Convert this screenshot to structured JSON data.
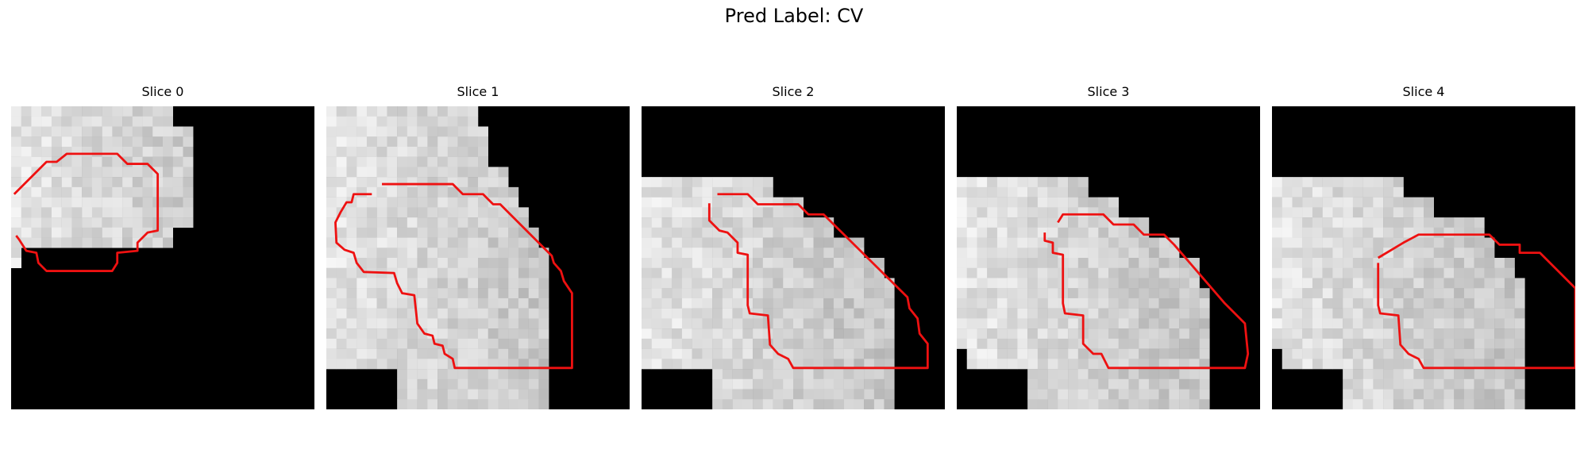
{
  "title": "Pred Label: CV",
  "slices": [
    {
      "label": "Slice 0",
      "mask_rows": [
        "111111111111111100000000000000",
        "111111111111111100000000000000",
        "111111111111111111000000000000",
        "111111111111111111000000000000",
        "111111111111111111000000000000",
        "111111111111111111000000000000",
        "111111111111111111000000000000",
        "111111111111111111000000000000",
        "111111111111111111000000000000",
        "111111111111111111000000000000",
        "111111111111111111000000000000",
        "111111111111111111000000000000",
        "111111111111111100000000000000",
        "111111111111111100000000000000",
        "100000000000000000000000000000",
        "100000000000000000000000000000",
        "000000000000000000000000000000",
        "000000000000000000000000000000",
        "000000000000000000000000000000",
        "000000000000000000000000000000",
        "000000000000000000000000000000",
        "000000000000000000000000000000",
        "000000000000000000000000000000",
        "000000000000000000000000000000",
        "000000000000000000000000000000",
        "000000000000000000000000000000",
        "000000000000000000000000000000",
        "000000000000000000000000000000",
        "000000000000000000000000000000",
        "000000000000000000000000000000"
      ],
      "contour": [
        [
          0.3,
          8.7
        ],
        [
          3.5,
          5.5
        ],
        [
          4.5,
          5.5
        ],
        [
          5.5,
          4.7
        ],
        [
          10.5,
          4.7
        ],
        [
          11.5,
          5.7
        ],
        [
          13.5,
          5.7
        ],
        [
          14.5,
          6.7
        ],
        [
          14.5,
          12.3
        ],
        [
          13.5,
          12.5
        ],
        [
          12.5,
          13.5
        ],
        [
          12.5,
          14.3
        ],
        [
          10.5,
          14.5
        ],
        [
          10.5,
          15.5
        ],
        [
          10.0,
          16.3
        ],
        [
          3.5,
          16.3
        ],
        [
          2.7,
          15.5
        ],
        [
          2.5,
          14.5
        ],
        [
          1.5,
          14.3
        ],
        [
          0.8,
          13.2
        ],
        [
          0.5,
          12.8
        ]
      ]
    },
    {
      "label": "Slice 1",
      "mask_rows": [
        "111111111111111000000000000000",
        "111111111111111000000000000000",
        "111111111111111100000000000000",
        "111111111111111100000000000000",
        "111111111111111100000000000000",
        "111111111111111100000000000000",
        "111111111111111111000000000000",
        "111111111111111111000000000000",
        "111111111111111111100000000000",
        "111111111111111111100000000000",
        "111111111111111111110000000000",
        "111111111111111111110000000000",
        "111111111111111111111000000000",
        "111111111111111111111000000000",
        "111111111111111111111100000000",
        "111111111111111111111100000000",
        "111111111111111111111100000000",
        "111111111111111111111100000000",
        "111111111111111111111100000000",
        "111111111111111111111100000000",
        "111111111111111111111100000000",
        "111111111111111111111100000000",
        "111111111111111111111100000000",
        "111111111111111111111100000000",
        "111111111111111111111100000000",
        "111111111111111111111100000000",
        "000000011111111111111100000000",
        "000000011111111111111100000000",
        "000000011111111111111100000000",
        "000000011111111111111100000000"
      ],
      "contour": [
        [
          5.5,
          7.7
        ],
        [
          12.5,
          7.7
        ],
        [
          13.5,
          8.7
        ],
        [
          15.5,
          8.7
        ],
        [
          16.5,
          9.7
        ],
        [
          17.2,
          9.7
        ],
        [
          22.3,
          14.8
        ],
        [
          22.5,
          15.5
        ],
        [
          23.2,
          16.3
        ],
        [
          23.5,
          17.3
        ],
        [
          24.3,
          18.5
        ],
        [
          24.3,
          25.9
        ],
        [
          12.7,
          25.9
        ],
        [
          12.5,
          25.0
        ],
        [
          11.7,
          24.5
        ],
        [
          11.5,
          23.7
        ],
        [
          10.7,
          23.5
        ],
        [
          10.5,
          22.7
        ],
        [
          9.7,
          22.5
        ],
        [
          9.0,
          21.5
        ],
        [
          8.7,
          18.7
        ],
        [
          7.5,
          18.5
        ],
        [
          7.0,
          17.5
        ],
        [
          6.7,
          16.5
        ],
        [
          3.7,
          16.4
        ],
        [
          3.0,
          15.5
        ],
        [
          2.7,
          14.5
        ],
        [
          1.8,
          14.2
        ],
        [
          1.0,
          13.5
        ],
        [
          0.9,
          11.5
        ],
        [
          1.4,
          10.5
        ],
        [
          2.0,
          9.5
        ],
        [
          2.5,
          9.5
        ],
        [
          2.7,
          8.7
        ],
        [
          4.5,
          8.7
        ]
      ]
    },
    {
      "label": "Slice 2",
      "mask_rows": [
        "000000000000000000000000000000",
        "000000000000000000000000000000",
        "000000000000000000000000000000",
        "000000000000000000000000000000",
        "000000000000000000000000000000",
        "000000000000000000000000000000",
        "000000000000000000000000000000",
        "111111111111100000000000000000",
        "111111111111100000000000000000",
        "111111111111111100000000000000",
        "111111111111111100000000000000",
        "111111111111111111100000000000",
        "111111111111111111100000000000",
        "111111111111111111111100000000",
        "111111111111111111111100000000",
        "111111111111111111111111000000",
        "111111111111111111111111000000",
        "111111111111111111111111100000",
        "111111111111111111111111100000",
        "111111111111111111111111100000",
        "111111111111111111111111100000",
        "111111111111111111111111100000",
        "111111111111111111111111100000",
        "111111111111111111111111100000",
        "111111111111111111111111100000",
        "111111111111111111111111100000",
        "000000011111111111111111100000",
        "000000011111111111111111100000",
        "000000011111111111111111100000",
        "000000011111111111111111100000"
      ],
      "contour": [
        [
          7.5,
          8.7
        ],
        [
          10.5,
          8.7
        ],
        [
          11.5,
          9.7
        ],
        [
          15.5,
          9.7
        ],
        [
          16.5,
          10.7
        ],
        [
          18.0,
          10.7
        ],
        [
          26.3,
          18.9
        ],
        [
          26.5,
          20.0
        ],
        [
          27.3,
          21.0
        ],
        [
          27.5,
          22.5
        ],
        [
          28.3,
          23.5
        ],
        [
          28.3,
          25.9
        ],
        [
          15.0,
          25.9
        ],
        [
          14.5,
          25.0
        ],
        [
          13.5,
          24.5
        ],
        [
          12.7,
          23.6
        ],
        [
          12.5,
          20.7
        ],
        [
          10.7,
          20.5
        ],
        [
          10.5,
          19.7
        ],
        [
          10.5,
          14.7
        ],
        [
          9.5,
          14.5
        ],
        [
          9.5,
          13.5
        ],
        [
          8.5,
          12.5
        ],
        [
          7.7,
          12.3
        ],
        [
          6.7,
          11.3
        ],
        [
          6.7,
          9.6
        ]
      ]
    },
    {
      "label": "Slice 3",
      "mask_rows": [
        "000000000000000000000000000000",
        "000000000000000000000000000000",
        "000000000000000000000000000000",
        "000000000000000000000000000000",
        "000000000000000000000000000000",
        "000000000000000000000000000000",
        "000000000000000000000000000000",
        "111111111111100000000000000000",
        "111111111111100000000000000000",
        "111111111111111100000000000000",
        "111111111111111100000000000000",
        "111111111111111111100000000000",
        "111111111111111111100000000000",
        "111111111111111111111100000000",
        "111111111111111111111100000000",
        "111111111111111111111111000000",
        "111111111111111111111111000000",
        "111111111111111111111111000000",
        "111111111111111111111111100000",
        "111111111111111111111111100000",
        "111111111111111111111111100000",
        "111111111111111111111111100000",
        "111111111111111111111111100000",
        "111111111111111111111111100000",
        "011111111111111111111111100000",
        "011111111111111111111111100000",
        "000000011111111111111111100000",
        "000000011111111111111111100000",
        "000000011111111111111111100000",
        "000000011111111111111111100000"
      ],
      "contour": [
        [
          10.0,
          11.5
        ],
        [
          10.5,
          10.7
        ],
        [
          14.5,
          10.7
        ],
        [
          15.5,
          11.7
        ],
        [
          17.5,
          11.7
        ],
        [
          18.5,
          12.7
        ],
        [
          20.5,
          12.7
        ],
        [
          21.5,
          13.7
        ],
        [
          26.5,
          19.5
        ],
        [
          27.5,
          20.5
        ],
        [
          28.5,
          21.5
        ],
        [
          28.8,
          24.5
        ],
        [
          28.5,
          25.9
        ],
        [
          15.0,
          25.9
        ],
        [
          14.3,
          24.5
        ],
        [
          13.5,
          24.5
        ],
        [
          12.5,
          23.5
        ],
        [
          12.5,
          20.7
        ],
        [
          10.7,
          20.5
        ],
        [
          10.5,
          19.5
        ],
        [
          10.5,
          14.7
        ],
        [
          9.5,
          14.5
        ],
        [
          9.5,
          13.5
        ],
        [
          8.7,
          13.3
        ],
        [
          8.7,
          12.5
        ]
      ]
    },
    {
      "label": "Slice 4",
      "mask_rows": [
        "000000000000000000000000000000",
        "000000000000000000000000000000",
        "000000000000000000000000000000",
        "000000000000000000000000000000",
        "000000000000000000000000000000",
        "000000000000000000000000000000",
        "000000000000000000000000000000",
        "111111111111100000000000000000",
        "111111111111100000000000000000",
        "111111111111111100000000000000",
        "111111111111111100000000000000",
        "111111111111111111111000000000",
        "111111111111111111111000000000",
        "111111111111111111111100000000",
        "111111111111111111111100000000",
        "111111111111111111111111000000",
        "111111111111111111111111000000",
        "111111111111111111111111100000",
        "111111111111111111111111100000",
        "111111111111111111111111100000",
        "111111111111111111111111100000",
        "111111111111111111111111100000",
        "111111111111111111111111100000",
        "111111111111111111111111100000",
        "011111111111111111111111100000",
        "011111111111111111111111100000",
        "000000011111111111111111100000",
        "000000011111111111111111100000",
        "000000011111111111111111100000",
        "000000011111111111111111100000"
      ],
      "contour": [
        [
          10.5,
          15.0
        ],
        [
          13.0,
          13.5
        ],
        [
          14.5,
          12.7
        ],
        [
          21.5,
          12.7
        ],
        [
          22.5,
          13.7
        ],
        [
          24.5,
          13.7
        ],
        [
          24.5,
          14.5
        ],
        [
          26.5,
          14.5
        ],
        [
          30.0,
          18.0
        ],
        [
          30.0,
          25.9
        ],
        [
          15.0,
          25.9
        ],
        [
          14.5,
          25.0
        ],
        [
          13.5,
          24.5
        ],
        [
          12.7,
          23.6
        ],
        [
          12.5,
          20.7
        ],
        [
          10.7,
          20.5
        ],
        [
          10.5,
          19.7
        ],
        [
          10.5,
          15.5
        ]
      ]
    }
  ]
}
